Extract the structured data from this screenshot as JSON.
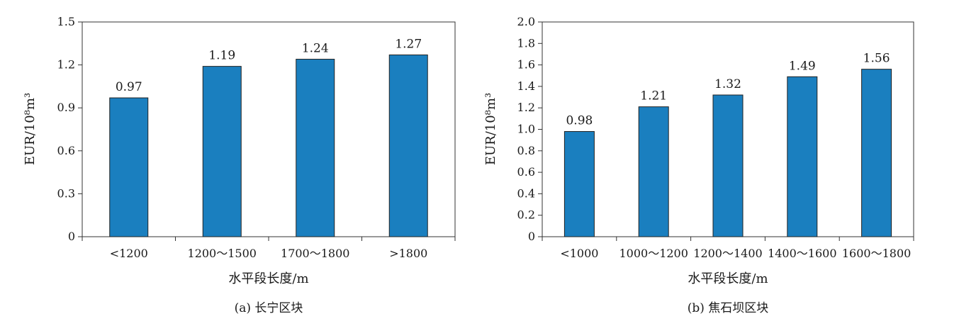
{
  "chart_data": [
    {
      "type": "bar",
      "caption": "(a) 长宁区块",
      "categories": [
        "<1200",
        "1200～1500",
        "1700～1800",
        ">1800"
      ],
      "values": [
        0.97,
        1.19,
        1.24,
        1.27
      ],
      "value_labels": [
        "0.97",
        "1.19",
        "1.24",
        "1.27"
      ],
      "xlabel": "水平段长度/m",
      "ylabel": "EUR/10⁸m³",
      "ylim": [
        0,
        1.5
      ],
      "yticks": [
        "0",
        "0.3",
        "0.6",
        "0.9",
        "1.2",
        "1.5"
      ],
      "bar_color": "#1a7fbf",
      "grid": false
    },
    {
      "type": "bar",
      "caption": "(b) 焦石坝区块",
      "categories": [
        "<1000",
        "1000～1200",
        "1200～1400",
        "1400～1600",
        "1600～1800"
      ],
      "values": [
        0.98,
        1.21,
        1.32,
        1.49,
        1.56
      ],
      "value_labels": [
        "0.98",
        "1.21",
        "1.32",
        "1.49",
        "1.56"
      ],
      "xlabel": "水平段长度/m",
      "ylabel": "EUR/10⁸m³",
      "ylim": [
        0,
        2.0
      ],
      "yticks": [
        "0",
        "0.2",
        "0.4",
        "0.6",
        "0.8",
        "1.0",
        "1.2",
        "1.4",
        "1.6",
        "1.8",
        "2.0"
      ],
      "bar_color": "#1a7fbf",
      "grid": false
    }
  ]
}
